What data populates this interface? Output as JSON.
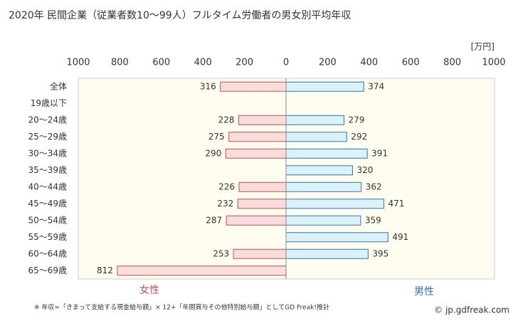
{
  "chart_data": {
    "type": "butterfly-bar",
    "title": "2020年 民間企業（従業者数10～99人）フルタイム労働者の男女別平均年収",
    "unit": "[万円]",
    "categories": [
      "全体",
      "19歳以下",
      "20～24歳",
      "25～29歳",
      "30～34歳",
      "35～39歳",
      "40～44歳",
      "45～49歳",
      "50～54歳",
      "55～59歳",
      "60～64歳",
      "65～69歳"
    ],
    "series": [
      {
        "name": "女性",
        "color": "#c0504d",
        "fill": "#fadcdc",
        "xlim": [
          1000,
          0
        ],
        "xticks": [
          1000,
          800,
          600,
          400,
          200
        ],
        "values": [
          316,
          null,
          228,
          275,
          290,
          null,
          226,
          232,
          287,
          null,
          253,
          812
        ]
      },
      {
        "name": "男性",
        "color": "#2e75b6",
        "fill": "#dcf2fb",
        "xlim": [
          0,
          1000
        ],
        "xticks": [
          0,
          200,
          400,
          600,
          800,
          1000
        ],
        "values": [
          374,
          null,
          279,
          292,
          391,
          320,
          362,
          471,
          359,
          491,
          395,
          null
        ]
      }
    ],
    "footnote": "※ 年収=「きまって支給する現金給与額」× 12+「年間賞与その他特別給与額」としてGD Freak!推計",
    "source": "© jp.gdfreak.com"
  }
}
